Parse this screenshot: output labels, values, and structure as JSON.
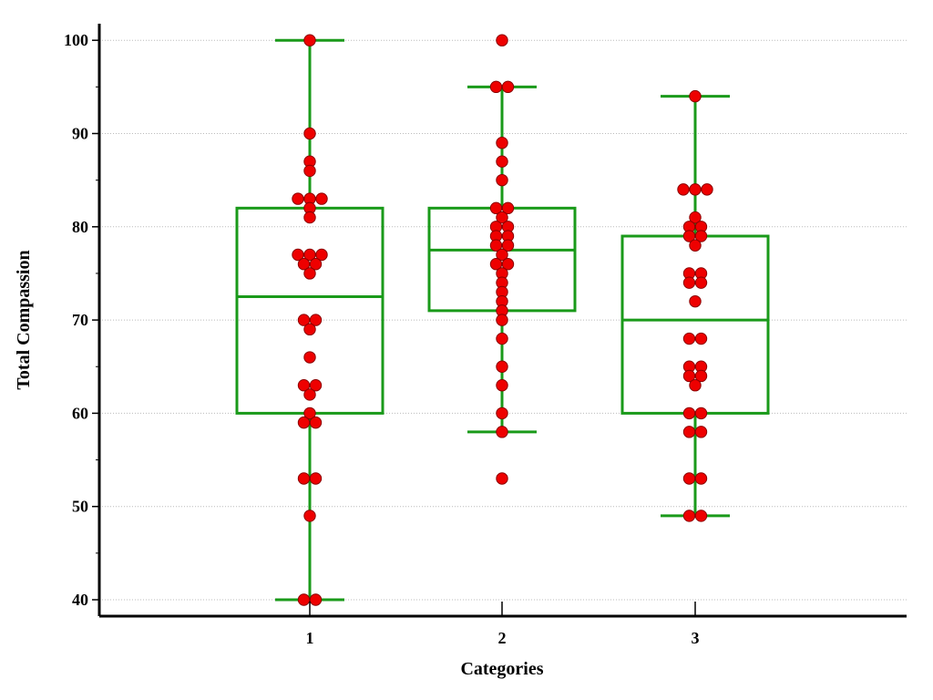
{
  "chart_data": {
    "type": "box",
    "title": "",
    "xlabel": "Categories",
    "ylabel": "Total Compassion",
    "ylim": [
      38,
      102
    ],
    "yticks": [
      40,
      50,
      60,
      70,
      80,
      90,
      100
    ],
    "grid": "horizontal",
    "categories": [
      "1",
      "2",
      "3"
    ],
    "boxes": [
      {
        "category": "1",
        "whisker_low": 40,
        "q1": 60,
        "median": 72.5,
        "q3": 82,
        "whisker_high": 100
      },
      {
        "category": "2",
        "whisker_low": 58,
        "q1": 71,
        "median": 77.5,
        "q3": 82,
        "whisker_high": 95
      },
      {
        "category": "3",
        "whisker_low": 49,
        "q1": 60,
        "median": 70,
        "q3": 79,
        "whisker_high": 94
      }
    ],
    "points": [
      [
        100,
        90,
        87,
        86,
        83,
        83,
        83,
        82,
        81,
        77,
        77,
        77,
        76,
        76,
        75,
        70,
        70,
        69,
        66,
        63,
        63,
        62,
        60,
        59,
        59,
        53,
        53,
        49,
        40,
        40
      ],
      [
        100,
        95,
        95,
        89,
        87,
        85,
        82,
        82,
        81,
        80,
        80,
        79,
        79,
        78,
        78,
        77,
        76,
        76,
        75,
        74,
        73,
        72,
        71,
        70,
        68,
        65,
        63,
        60,
        58,
        53
      ],
      [
        94,
        84,
        84,
        84,
        81,
        80,
        80,
        79,
        79,
        78,
        75,
        75,
        74,
        74,
        72,
        68,
        68,
        65,
        65,
        64,
        64,
        63,
        60,
        60,
        58,
        58,
        53,
        53,
        49,
        49
      ]
    ],
    "colors": {
      "box": "#1a9a1a",
      "point_fill": "#ee0000",
      "point_stroke": "#8b0000",
      "grid": "#bbbbbb",
      "axis": "#000000"
    }
  }
}
